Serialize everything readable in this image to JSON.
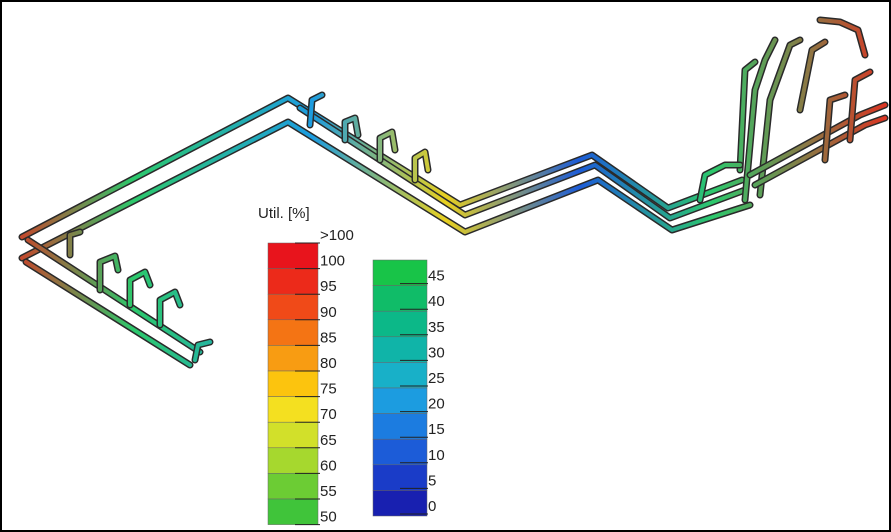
{
  "legend": {
    "title": "Util. [%]",
    "upper": {
      "labels": [
        ">100",
        "100",
        "95",
        "90",
        "85",
        "80",
        "75",
        "70",
        "65",
        "60",
        "55",
        "50"
      ],
      "colors": [
        "#e8141c",
        "#ec2a1a",
        "#f04a18",
        "#f47414",
        "#f89c12",
        "#fcc40e",
        "#f4e020",
        "#d2e02a",
        "#a6d82e",
        "#6ccc34",
        "#40c43a"
      ]
    },
    "lower": {
      "labels": [
        "45",
        "40",
        "35",
        "30",
        "25",
        "20",
        "15",
        "10",
        "5",
        "0"
      ],
      "colors": [
        "#18c448",
        "#10bc68",
        "#0cb888",
        "#10b4a8",
        "#18b0c8",
        "#1c9ce0",
        "#1c7ce0",
        "#1c5cd8",
        "#1a3cc8",
        "#1820b0"
      ]
    }
  }
}
